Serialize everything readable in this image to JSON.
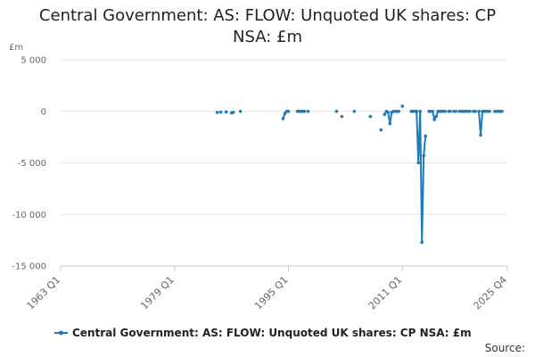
{
  "chart_data": {
    "type": "line",
    "title": "Central Government: AS: FLOW: Unquoted UK shares: CP NSA: £m",
    "unit_label": "£m",
    "color": "#1f7bb6",
    "grid": true,
    "legend_position": "bottom",
    "y_ticks": [
      5000,
      0,
      -5000,
      -10000,
      -15000
    ],
    "y_tick_labels": [
      "5 000",
      "0",
      "-5 000",
      "-10 000",
      "-15 000"
    ],
    "ylim": [
      -15000,
      5000
    ],
    "x_ticks": [
      "1963 Q1",
      "1979 Q1",
      "1995 Q1",
      "2011 Q1",
      "2025 Q4"
    ],
    "xlim": [
      "1963 Q1",
      "2025 Q4"
    ],
    "series": [
      {
        "name": "Central Government: AS: FLOW: Unquoted UK shares: CP NSA: £m",
        "segments": [
          [
            [
              "1985 Q1",
              -100
            ]
          ],
          [
            [
              "1985 Q3",
              -80
            ]
          ],
          [
            [
              "1986 Q2",
              -50
            ]
          ],
          [
            [
              "1987 Q1",
              -150
            ]
          ],
          [
            [
              "1987 Q2",
              -100
            ]
          ],
          [
            [
              "1988 Q2",
              0
            ]
          ],
          [
            [
              "1994 Q2",
              -700
            ],
            [
              "1994 Q3",
              -200
            ],
            [
              "1994 Q4",
              0
            ]
          ],
          [
            [
              "1995 Q1",
              0
            ]
          ],
          [
            [
              "1996 Q2",
              0
            ],
            [
              "1996 Q3",
              0
            ],
            [
              "1996 Q4",
              0
            ],
            [
              "1997 Q1",
              0
            ],
            [
              "1997 Q2",
              0
            ]
          ],
          [
            [
              "1997 Q4",
              0
            ]
          ],
          [
            [
              "2001 Q4",
              0
            ]
          ],
          [
            [
              "2002 Q3",
              -500
            ]
          ],
          [
            [
              "2004 Q2",
              0
            ]
          ],
          [
            [
              "2006 Q3",
              -500
            ]
          ],
          [
            [
              "2008 Q1",
              -1800
            ]
          ],
          [
            [
              "2008 Q3",
              -300
            ],
            [
              "2008 Q4",
              0
            ],
            [
              "2009 Q1",
              -100
            ],
            [
              "2009 Q2",
              -1200
            ],
            [
              "2009 Q3",
              -100
            ],
            [
              "2009 Q4",
              0
            ],
            [
              "2010 Q1",
              0
            ],
            [
              "2010 Q2",
              0
            ],
            [
              "2010 Q3",
              0
            ]
          ],
          [
            [
              "2011 Q1",
              500
            ]
          ],
          [
            [
              "2012 Q2",
              0
            ],
            [
              "2012 Q3",
              0
            ],
            [
              "2012 Q4",
              0
            ],
            [
              "2013 Q1",
              0
            ],
            [
              "2013 Q2",
              -5000
            ],
            [
              "2013 Q3",
              0
            ],
            [
              "2013 Q4",
              -12700
            ],
            [
              "2014 Q1",
              -4300
            ],
            [
              "2014 Q2",
              -2400
            ]
          ],
          [
            [
              "2014 Q4",
              0
            ],
            [
              "2015 Q1",
              0
            ],
            [
              "2015 Q2",
              0
            ],
            [
              "2015 Q3",
              -800
            ],
            [
              "2015 Q4",
              -500
            ],
            [
              "2016 Q1",
              0
            ],
            [
              "2016 Q2",
              0
            ],
            [
              "2016 Q3",
              0
            ],
            [
              "2016 Q4",
              0
            ],
            [
              "2017 Q1",
              0
            ]
          ],
          [
            [
              "2017 Q3",
              0
            ],
            [
              "2017 Q4",
              0
            ]
          ],
          [
            [
              "2018 Q2",
              0
            ],
            [
              "2018 Q3",
              0
            ]
          ],
          [
            [
              "2019 Q1",
              0
            ],
            [
              "2019 Q2",
              0
            ],
            [
              "2019 Q3",
              0
            ],
            [
              "2019 Q4",
              0
            ],
            [
              "2020 Q1",
              0
            ],
            [
              "2020 Q2",
              0
            ],
            [
              "2020 Q3",
              0
            ]
          ],
          [
            [
              "2021 Q1",
              0
            ],
            [
              "2021 Q2",
              0
            ]
          ],
          [
            [
              "2021 Q4",
              0
            ],
            [
              "2022 Q1",
              -2300
            ],
            [
              "2022 Q2",
              0
            ],
            [
              "2022 Q3",
              0
            ],
            [
              "2022 Q4",
              0
            ],
            [
              "2023 Q1",
              0
            ],
            [
              "2023 Q2",
              0
            ]
          ],
          [
            [
              "2024 Q1",
              0
            ],
            [
              "2024 Q2",
              0
            ],
            [
              "2024 Q3",
              0
            ],
            [
              "2024 Q4",
              0
            ],
            [
              "2025 Q1",
              0
            ]
          ]
        ]
      }
    ]
  },
  "legend": {
    "label": "Central Government: AS: FLOW: Unquoted UK shares: CP NSA: £m"
  },
  "footer": {
    "source_label": "Source:"
  }
}
